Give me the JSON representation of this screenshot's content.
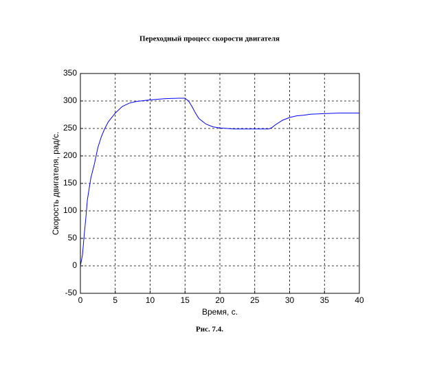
{
  "chart_data": {
    "type": "line",
    "title": "Переходный процесс скорости двигателя",
    "caption": "Рис. 7.4.",
    "xlabel": "Время, с.",
    "ylabel": "Скорость двигателя, рад/с.",
    "x": [
      0,
      0.3,
      0.5,
      0.8,
      1,
      1.5,
      2,
      2.5,
      3,
      3.5,
      4,
      5,
      6,
      7,
      8,
      10,
      12,
      14,
      15,
      15.5,
      16,
      16.5,
      17,
      18,
      19,
      20,
      22,
      25,
      27,
      27.5,
      28,
      29,
      30,
      31,
      32,
      33,
      35,
      37,
      40
    ],
    "values": [
      0,
      20,
      50,
      90,
      120,
      160,
      185,
      215,
      235,
      250,
      262,
      278,
      290,
      296,
      299,
      302,
      304,
      305,
      305,
      300,
      290,
      278,
      268,
      258,
      253,
      251,
      249,
      249,
      249,
      252,
      257,
      265,
      270,
      273,
      274,
      276,
      277,
      278,
      278
    ],
    "color": "#0000ff",
    "xlim": [
      0,
      40
    ],
    "xticks": [
      0,
      5,
      10,
      15,
      20,
      25,
      30,
      35,
      40
    ],
    "ylim": [
      -50,
      350
    ],
    "yticks": [
      -50,
      0,
      50,
      100,
      150,
      200,
      250,
      300,
      350
    ],
    "grid": true
  }
}
